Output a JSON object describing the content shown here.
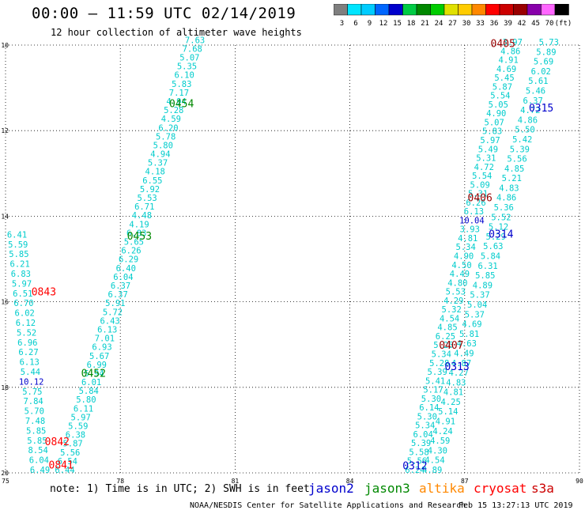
{
  "header": {
    "title": "00:00 – 11:59 UTC 02/14/2019",
    "subtitle": "12 hour collection of altimeter wave heights"
  },
  "colorbar": {
    "labels": [
      "3",
      "6",
      "9",
      "12",
      "15",
      "18",
      "21",
      "24",
      "27",
      "30",
      "33",
      "36",
      "39",
      "42",
      "45",
      "70",
      "(ft)"
    ],
    "colors": [
      "#7f7f7f",
      "#00e5ff",
      "#00ccff",
      "#0066ff",
      "#0000cc",
      "#00cc44",
      "#008800",
      "#00cc00",
      "#e0e000",
      "#ffcc00",
      "#ff8800",
      "#ff0000",
      "#cc0000",
      "#990000",
      "#8800aa",
      "#ff66ff",
      "#000000"
    ]
  },
  "footer": {
    "note": "note: 1) Time is in UTC; 2) SWH is in feet",
    "satellites": [
      {
        "name": "jason2",
        "color": "#0000cc"
      },
      {
        "name": "jason3",
        "color": "#008800"
      },
      {
        "name": "altika",
        "color": "#ff8800"
      },
      {
        "name": "cryosat",
        "color": "#ff0000"
      },
      {
        "name": "s3a",
        "color": "#cc0000"
      }
    ],
    "credit": "NOAA/NESDIS Center for Satellite Applications and Research",
    "timestamp": "Feb 15 13:27:13 UTC 2019"
  },
  "chart_data": {
    "type": "scatter",
    "xlim": [
      75,
      90
    ],
    "ylim": [
      -20,
      -10
    ],
    "xticks": [
      75,
      78,
      81,
      84,
      87,
      90
    ],
    "yticks": [
      -10,
      -12,
      -14,
      -16,
      -18,
      -20
    ],
    "xtick_labels": [
      "75",
      "78",
      "81",
      "84",
      "87",
      "90"
    ],
    "ytick_labels": [
      "-10",
      "-12",
      "-14",
      "-16",
      "-18",
      "-20"
    ],
    "grid": true,
    "legend_placement": "bottom",
    "tracks": [
      {
        "label": "0454",
        "label_color": "#008800",
        "label_x": 79.6,
        "label_y": -11.45,
        "x_start": 76.55,
        "y_start": -20.0,
        "x_end": 79.95,
        "y_end": -9.95,
        "values": [
          7.63,
          7.68,
          5.07,
          5.35,
          6.1,
          5.83,
          7.17,
          4.94,
          5.28,
          4.59,
          6.2,
          5.78,
          5.8,
          4.94,
          5.37,
          4.18,
          6.55,
          5.92,
          5.53,
          6.71,
          4.48,
          4.19,
          6.83,
          5.65,
          6.26,
          6.29,
          6.4,
          6.04,
          6.37,
          6.37,
          5.91,
          5.72,
          6.43,
          6.13,
          7.01,
          6.93,
          5.67,
          6.99,
          5.94,
          6.01,
          5.84,
          5.8,
          6.11,
          5.97,
          5.59,
          6.38,
          5.87,
          5.56,
          6.54,
          6.44
        ]
      },
      {
        "label": "0453",
        "label_color": "#008800",
        "label_x": 78.5,
        "label_y": -14.55,
        "x_start": 0,
        "y_start": 0,
        "x_end": 0,
        "y_end": 0,
        "values": []
      },
      {
        "label": "0452",
        "label_color": "#008800",
        "label_x": 77.3,
        "label_y": -17.75,
        "x_start": 0,
        "y_start": 0,
        "x_end": 0,
        "y_end": 0,
        "values": []
      },
      {
        "label": "0843",
        "label_color": "#ff0000",
        "label_x": 76.0,
        "label_y": -15.85,
        "x_start": 75.3,
        "y_start": -14.5,
        "x_end": 75.9,
        "y_end": -20.0,
        "values": [
          6.49,
          6.04,
          8.54,
          5.85,
          5.85,
          7.48,
          5.7,
          7.84,
          5.75,
          10.12,
          5.44,
          6.13,
          6.27,
          6.96,
          5.52,
          6.12,
          6.02,
          6.7,
          6.51,
          5.97,
          6.83,
          6.21,
          5.85,
          5.59,
          6.41
        ]
      },
      {
        "label": "0842",
        "label_color": "#ff0000",
        "label_x": 76.35,
        "label_y": -19.35,
        "x_start": 0,
        "y_start": 0,
        "x_end": 0,
        "y_end": 0,
        "values": []
      },
      {
        "label": "0841",
        "label_color": "#ff0000",
        "label_x": 76.45,
        "label_y": -19.9,
        "x_start": 0,
        "y_start": 0,
        "x_end": 0,
        "y_end": 0,
        "values": []
      },
      {
        "label": "0405",
        "label_color": "#990000",
        "label_x": 88.0,
        "label_y": -10.05,
        "x_start": 85.7,
        "y_start": -20.0,
        "x_end": 88.25,
        "y_end": -10.0,
        "values": [
          3.97,
          4.86,
          4.91,
          4.69,
          5.45,
          5.87,
          5.54,
          5.05,
          4.9,
          5.07,
          5.83,
          5.97,
          5.49,
          5.31,
          4.72,
          5.54,
          5.09,
          5.31,
          6.26,
          6.13,
          10.04,
          3.93,
          4.81,
          5.34,
          4.9,
          4.5,
          4.49,
          4.8,
          5.53,
          4.29,
          5.32,
          4.54,
          4.85,
          6.25,
          5.25,
          5.34,
          5.28,
          5.39,
          5.41,
          5.17,
          5.3,
          6.14,
          5.3,
          5.34,
          6.04,
          5.39,
          5.58,
          5.56,
          6.24
        ]
      },
      {
        "label": "0406",
        "label_color": "#990000",
        "label_x": 87.4,
        "label_y": -13.65,
        "x_start": 0,
        "y_start": 0,
        "x_end": 0,
        "y_end": 0,
        "values": []
      },
      {
        "label": "0407",
        "label_color": "#990000",
        "label_x": 86.65,
        "label_y": -17.1,
        "x_start": 0,
        "y_start": 0,
        "x_end": 0,
        "y_end": 0,
        "values": []
      },
      {
        "label": "0315",
        "label_color": "#0000cc",
        "label_x": 89.0,
        "label_y": -11.55,
        "x_start": 86.15,
        "y_start": -20.0,
        "x_end": 89.2,
        "y_end": -10.0,
        "values": [
          5.73,
          5.89,
          5.69,
          6.02,
          5.61,
          5.46,
          6.37,
          4.72,
          4.86,
          5.5,
          5.42,
          5.39,
          5.56,
          4.85,
          5.21,
          4.83,
          4.86,
          5.36,
          5.52,
          5.12,
          5.29,
          5.63,
          5.84,
          6.31,
          5.85,
          4.89,
          5.37,
          5.04,
          5.37,
          4.69,
          5.81,
          4.63,
          4.49,
          4.87,
          4.27,
          4.83,
          4.81,
          4.25,
          5.14,
          4.91,
          4.24,
          4.59,
          4.3,
          4.54,
          4.89
        ]
      },
      {
        "label": "0314",
        "label_color": "#0000cc",
        "label_x": 87.95,
        "label_y": -14.5,
        "x_start": 0,
        "y_start": 0,
        "x_end": 0,
        "y_end": 0,
        "values": []
      },
      {
        "label": "0313",
        "label_color": "#0000cc",
        "label_x": 86.8,
        "label_y": -17.6,
        "x_start": 0,
        "y_start": 0,
        "x_end": 0,
        "y_end": 0,
        "values": []
      },
      {
        "label": "0312",
        "label_color": "#0000cc",
        "label_x": 85.7,
        "label_y": -19.92,
        "x_start": 0,
        "y_start": 0,
        "x_end": 0,
        "y_end": 0,
        "values": []
      }
    ]
  }
}
